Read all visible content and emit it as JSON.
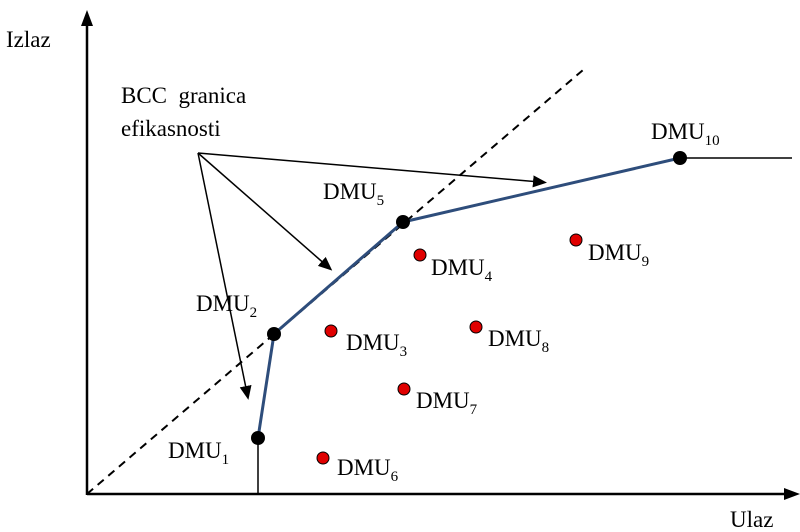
{
  "axes": {
    "y_label": "Izlaz",
    "x_label": "Ulaz"
  },
  "annotation": {
    "line1": "BCC  granica",
    "line2": "efikasnosti"
  },
  "colors": {
    "frontier": "#2e4d7b",
    "efficient_point": "#000000",
    "inefficient_point": "#e00000"
  },
  "dmus": [
    {
      "base": "DMU",
      "sub": "1",
      "efficient": true
    },
    {
      "base": "DMU",
      "sub": "2",
      "efficient": true
    },
    {
      "base": "DMU",
      "sub": "3",
      "efficient": false
    },
    {
      "base": "DMU",
      "sub": "4",
      "efficient": false
    },
    {
      "base": "DMU",
      "sub": "5",
      "efficient": true
    },
    {
      "base": "DMU",
      "sub": "6",
      "efficient": false
    },
    {
      "base": "DMU",
      "sub": "7",
      "efficient": false
    },
    {
      "base": "DMU",
      "sub": "8",
      "efficient": false
    },
    {
      "base": "DMU",
      "sub": "9",
      "efficient": false
    },
    {
      "base": "DMU",
      "sub": "10",
      "efficient": true
    }
  ]
}
